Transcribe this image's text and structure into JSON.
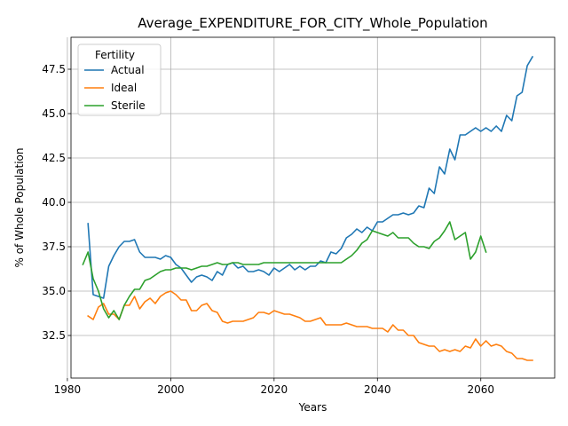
{
  "chart_data": {
    "type": "line",
    "title": "Average_EXPENDITURE_FOR_CITY_Whole_Population",
    "xlabel": "Years",
    "ylabel": "% of Whole Population",
    "xlim": [
      1980.7,
      2074.3
    ],
    "ylim": [
      30.1,
      49.3
    ],
    "xticks": [
      1980,
      2000,
      2020,
      2040,
      2060
    ],
    "yticks": [
      32.5,
      35.0,
      37.5,
      40.0,
      42.5,
      45.0,
      47.5
    ],
    "ytick_labels": [
      "32.5",
      "35.0",
      "37.5",
      "40.0",
      "42.5",
      "45.0",
      "47.5"
    ],
    "grid": true,
    "legend": {
      "title": "Fertility",
      "placement": "top-left"
    },
    "series": [
      {
        "name": "Actual",
        "color": "#1f77b4",
        "x": [
          1984,
          1985,
          1986,
          1987,
          1988,
          1989,
          1990,
          1991,
          1992,
          1993,
          1994,
          1995,
          1996,
          1997,
          1998,
          1999,
          2000,
          2001,
          2002,
          2003,
          2004,
          2005,
          2006,
          2007,
          2008,
          2009,
          2010,
          2011,
          2012,
          2013,
          2014,
          2015,
          2016,
          2017,
          2018,
          2019,
          2020,
          2021,
          2022,
          2023,
          2024,
          2025,
          2026,
          2027,
          2028,
          2029,
          2030,
          2031,
          2032,
          2033,
          2034,
          2035,
          2036,
          2037,
          2038,
          2039,
          2040,
          2041,
          2042,
          2043,
          2044,
          2045,
          2046,
          2047,
          2048,
          2049,
          2050,
          2051,
          2052,
          2053,
          2054,
          2055,
          2056,
          2057,
          2058,
          2059,
          2060,
          2061,
          2062,
          2063,
          2064,
          2065,
          2066,
          2067,
          2068,
          2069,
          2070
        ],
        "y": [
          38.8,
          34.8,
          34.7,
          34.6,
          36.4,
          37.0,
          37.5,
          37.8,
          37.8,
          37.9,
          37.2,
          36.9,
          36.9,
          36.9,
          36.8,
          37.0,
          36.9,
          36.5,
          36.3,
          35.9,
          35.5,
          35.8,
          35.9,
          35.8,
          35.6,
          36.1,
          35.9,
          36.5,
          36.6,
          36.3,
          36.4,
          36.1,
          36.1,
          36.2,
          36.1,
          35.9,
          36.3,
          36.1,
          36.3,
          36.5,
          36.2,
          36.4,
          36.2,
          36.4,
          36.4,
          36.7,
          36.6,
          37.2,
          37.1,
          37.4,
          38.0,
          38.2,
          38.5,
          38.3,
          38.6,
          38.4,
          38.9,
          38.9,
          39.1,
          39.3,
          39.3,
          39.4,
          39.3,
          39.4,
          39.8,
          39.7,
          40.8,
          40.5,
          42.0,
          41.6,
          43.0,
          42.4,
          43.8,
          43.8,
          44.0,
          44.2,
          44.0,
          44.2,
          44.0,
          44.3,
          44.0,
          44.9,
          44.6,
          46.0,
          46.2,
          47.7,
          48.2
        ]
      },
      {
        "name": "Ideal",
        "color": "#ff7f0e",
        "x": [
          1984,
          1985,
          1986,
          1987,
          1988,
          1989,
          1990,
          1991,
          1992,
          1993,
          1994,
          1995,
          1996,
          1997,
          1998,
          1999,
          2000,
          2001,
          2002,
          2003,
          2004,
          2005,
          2006,
          2007,
          2008,
          2009,
          2010,
          2011,
          2012,
          2013,
          2014,
          2015,
          2016,
          2017,
          2018,
          2019,
          2020,
          2021,
          2022,
          2023,
          2024,
          2025,
          2026,
          2027,
          2028,
          2029,
          2030,
          2031,
          2032,
          2033,
          2034,
          2035,
          2036,
          2037,
          2038,
          2039,
          2040,
          2041,
          2042,
          2043,
          2044,
          2045,
          2046,
          2047,
          2048,
          2049,
          2050,
          2051,
          2052,
          2053,
          2054,
          2055,
          2056,
          2057,
          2058,
          2059,
          2060,
          2061,
          2062,
          2063,
          2064,
          2065,
          2066,
          2067,
          2068,
          2069,
          2070
        ],
        "y": [
          33.6,
          33.4,
          34.1,
          34.3,
          33.7,
          33.7,
          33.4,
          34.2,
          34.2,
          34.7,
          34.0,
          34.4,
          34.6,
          34.3,
          34.7,
          34.9,
          35.0,
          34.8,
          34.5,
          34.5,
          33.9,
          33.9,
          34.2,
          34.3,
          33.9,
          33.8,
          33.3,
          33.2,
          33.3,
          33.3,
          33.3,
          33.4,
          33.5,
          33.8,
          33.8,
          33.7,
          33.9,
          33.8,
          33.7,
          33.7,
          33.6,
          33.5,
          33.3,
          33.3,
          33.4,
          33.5,
          33.1,
          33.1,
          33.1,
          33.1,
          33.2,
          33.1,
          33.0,
          33.0,
          33.0,
          32.9,
          32.9,
          32.9,
          32.7,
          33.1,
          32.8,
          32.8,
          32.5,
          32.5,
          32.1,
          32.0,
          31.9,
          31.9,
          31.6,
          31.7,
          31.6,
          31.7,
          31.6,
          31.9,
          31.8,
          32.3,
          31.9,
          32.2,
          31.9,
          32.0,
          31.9,
          31.6,
          31.5,
          31.2,
          31.2,
          31.1,
          31.1
        ]
      },
      {
        "name": "Sterile",
        "color": "#2ca02c",
        "x": [
          1983,
          1984,
          1985,
          1986,
          1987,
          1988,
          1989,
          1990,
          1991,
          1992,
          1993,
          1994,
          1995,
          1996,
          1997,
          1998,
          1999,
          2000,
          2001,
          2002,
          2003,
          2004,
          2005,
          2006,
          2007,
          2008,
          2009,
          2010,
          2011,
          2012,
          2013,
          2014,
          2015,
          2016,
          2017,
          2018,
          2019,
          2020,
          2021,
          2022,
          2023,
          2024,
          2025,
          2026,
          2027,
          2028,
          2029,
          2030,
          2031,
          2032,
          2033,
          2034,
          2035,
          2036,
          2037,
          2038,
          2039,
          2040,
          2041,
          2042,
          2043,
          2044,
          2045,
          2046,
          2047,
          2048,
          2049,
          2050,
          2051,
          2052,
          2053,
          2054,
          2055,
          2056,
          2057,
          2058,
          2059,
          2060,
          2061
        ],
        "y": [
          36.5,
          37.2,
          35.7,
          35.0,
          34.0,
          33.5,
          33.9,
          33.4,
          34.2,
          34.7,
          35.1,
          35.1,
          35.6,
          35.7,
          35.9,
          36.1,
          36.2,
          36.2,
          36.3,
          36.3,
          36.3,
          36.2,
          36.3,
          36.4,
          36.4,
          36.5,
          36.6,
          36.5,
          36.5,
          36.6,
          36.6,
          36.5,
          36.5,
          36.5,
          36.5,
          36.6,
          36.6,
          36.6,
          36.6,
          36.6,
          36.6,
          36.6,
          36.6,
          36.6,
          36.6,
          36.6,
          36.6,
          36.6,
          36.6,
          36.6,
          36.6,
          36.8,
          37.0,
          37.3,
          37.7,
          37.9,
          38.4,
          38.3,
          38.2,
          38.1,
          38.3,
          38.0,
          38.0,
          38.0,
          37.7,
          37.5,
          37.5,
          37.4,
          37.8,
          38.0,
          38.4,
          38.9,
          37.9,
          38.1,
          38.3,
          36.8,
          37.2,
          38.1,
          37.2
        ]
      }
    ]
  }
}
